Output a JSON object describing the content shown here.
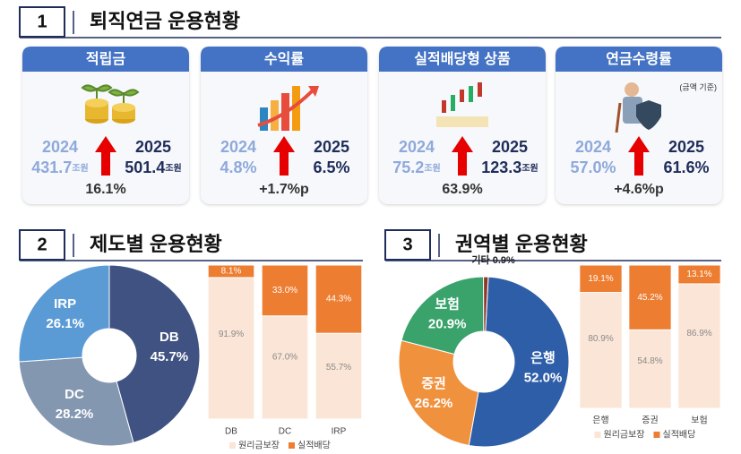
{
  "sections": [
    {
      "number": "1",
      "title": "퇴직연금 운용현황"
    },
    {
      "number": "2",
      "title": "제도별 운용현황"
    },
    {
      "number": "3",
      "title": "권역별 운용현황"
    }
  ],
  "cards": [
    {
      "title": "적립금",
      "from": {
        "year": "2024",
        "value": "431.7",
        "unit": "조원"
      },
      "to": {
        "year": "2025",
        "value": "501.4",
        "unit": "조원"
      },
      "change": "16.1%"
    },
    {
      "title": "수익률",
      "from": {
        "year": "2024",
        "value": "4.8%"
      },
      "to": {
        "year": "2025",
        "value": "6.5%"
      },
      "change": "+1.7%p"
    },
    {
      "title": "실적배당형 상품",
      "from": {
        "year": "2024",
        "value": "75.2",
        "unit": "조원"
      },
      "to": {
        "year": "2025",
        "value": "123.3",
        "unit": "조원"
      },
      "change": "63.9%"
    },
    {
      "title": "연금수령률",
      "note": "(금액 기준)",
      "from": {
        "year": "2024",
        "value": "57.0%"
      },
      "to": {
        "year": "2025",
        "value": "61.6%"
      },
      "change": "+4.6%p"
    }
  ],
  "chart_data": [
    {
      "type": "donut",
      "categories": [
        "DB",
        "DC",
        "IRP"
      ],
      "values": [
        45.7,
        28.2,
        26.1
      ],
      "value_labels": [
        "45.7%",
        "28.2%",
        "26.1%"
      ],
      "colors": [
        "#3f5282",
        "#8497b0",
        "#5b9bd5"
      ]
    },
    {
      "type": "stacked-bar",
      "categories": [
        "DB",
        "DC",
        "IRP"
      ],
      "ylim": [
        0,
        100
      ],
      "series": [
        {
          "name": "원리금보장",
          "color": "#fbe5d6",
          "values": [
            91.9,
            67.0,
            55.7
          ],
          "value_labels": [
            "91.9%",
            "67.0%",
            "55.7%"
          ]
        },
        {
          "name": "실적배당",
          "color": "#ed7d31",
          "values": [
            8.1,
            33.0,
            44.3
          ],
          "value_labels": [
            "8.1%",
            "33.0%",
            "44.3%"
          ]
        }
      ]
    },
    {
      "type": "donut",
      "categories": [
        "은행",
        "증권",
        "보험",
        "기타"
      ],
      "values": [
        52.0,
        26.2,
        20.9,
        0.9
      ],
      "value_labels": [
        "52.0%",
        "26.2%",
        "20.9%",
        "0.9%"
      ],
      "colors": [
        "#2e5ea8",
        "#f0913e",
        "#3aa36c",
        "#8b3a2a"
      ]
    },
    {
      "type": "stacked-bar",
      "categories": [
        "은행",
        "증권",
        "보험"
      ],
      "ylim": [
        0,
        100
      ],
      "series": [
        {
          "name": "원리금보장",
          "color": "#fbe5d6",
          "values": [
            80.9,
            54.8,
            86.9
          ],
          "value_labels": [
            "80.9%",
            "54.8%",
            "86.9%"
          ]
        },
        {
          "name": "실적배당",
          "color": "#ed7d31",
          "values": [
            19.1,
            45.2,
            13.1
          ],
          "value_labels": [
            "19.1%",
            "45.2%",
            "13.1%"
          ]
        }
      ]
    }
  ]
}
